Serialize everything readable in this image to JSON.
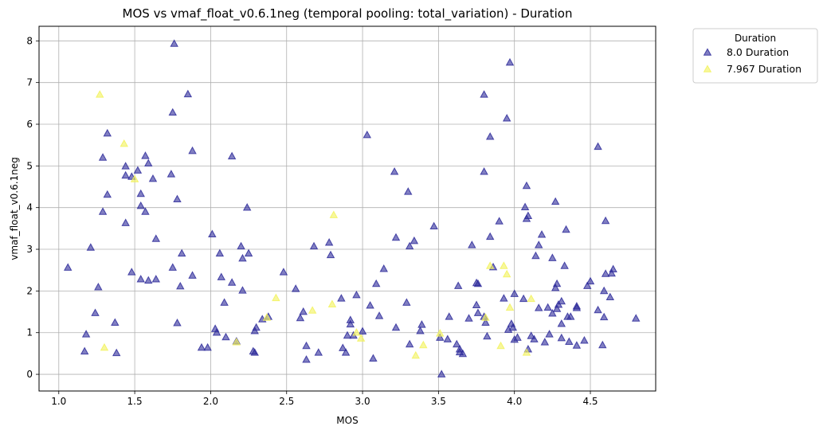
{
  "chart_data": {
    "type": "scatter",
    "title": "MOS vs vmaf_float_v0.6.1neg (temporal pooling: total_variation) - Duration",
    "xlabel": "MOS",
    "ylabel": "vmaf_float_v0.6.1neg",
    "xlim": [
      0.87,
      4.93
    ],
    "ylim": [
      -0.4,
      8.35
    ],
    "xticks": [
      1.0,
      1.5,
      2.0,
      2.5,
      3.0,
      3.5,
      4.0,
      4.5
    ],
    "xtick_labels": [
      "1.0",
      "1.5",
      "2.0",
      "2.5",
      "3.0",
      "3.5",
      "4.0",
      "4.5"
    ],
    "yticks": [
      0,
      1,
      2,
      3,
      4,
      5,
      6,
      7,
      8
    ],
    "ytick_labels": [
      "0",
      "1",
      "2",
      "3",
      "4",
      "5",
      "6",
      "7",
      "8"
    ],
    "grid": true,
    "legend": {
      "title": "Duration",
      "placement": "outside-top-right"
    },
    "marker": "triangle",
    "series": [
      {
        "name": "8.0 Duration",
        "color": "#2d2a9a",
        "points": [
          [
            1.06,
            2.56
          ],
          [
            1.17,
            0.55
          ],
          [
            1.18,
            0.96
          ],
          [
            1.21,
            3.04
          ],
          [
            1.24,
            1.47
          ],
          [
            1.26,
            2.09
          ],
          [
            1.29,
            3.9
          ],
          [
            1.29,
            5.2
          ],
          [
            1.32,
            5.78
          ],
          [
            1.32,
            4.31
          ],
          [
            1.37,
            1.24
          ],
          [
            1.38,
            0.51
          ],
          [
            1.44,
            4.99
          ],
          [
            1.44,
            4.77
          ],
          [
            1.44,
            3.63
          ],
          [
            1.48,
            2.45
          ],
          [
            1.48,
            4.74
          ],
          [
            1.52,
            4.89
          ],
          [
            1.54,
            4.33
          ],
          [
            1.54,
            4.04
          ],
          [
            1.54,
            2.28
          ],
          [
            1.57,
            3.9
          ],
          [
            1.57,
            5.24
          ],
          [
            1.59,
            5.06
          ],
          [
            1.59,
            2.25
          ],
          [
            1.62,
            4.69
          ],
          [
            1.64,
            3.25
          ],
          [
            1.64,
            2.28
          ],
          [
            1.74,
            4.8
          ],
          [
            1.75,
            6.28
          ],
          [
            1.75,
            2.56
          ],
          [
            1.76,
            7.93
          ],
          [
            1.78,
            4.2
          ],
          [
            1.78,
            1.23
          ],
          [
            1.8,
            2.11
          ],
          [
            1.81,
            2.9
          ],
          [
            1.85,
            6.72
          ],
          [
            1.88,
            5.36
          ],
          [
            1.88,
            2.37
          ],
          [
            1.94,
            0.64
          ],
          [
            1.98,
            0.64
          ],
          [
            2.01,
            3.36
          ],
          [
            2.03,
            1.09
          ],
          [
            2.04,
            1.0
          ],
          [
            2.06,
            2.9
          ],
          [
            2.07,
            2.33
          ],
          [
            2.09,
            1.72
          ],
          [
            2.1,
            0.89
          ],
          [
            2.14,
            2.2
          ],
          [
            2.14,
            5.23
          ],
          [
            2.17,
            0.79
          ],
          [
            2.2,
            3.07
          ],
          [
            2.21,
            2.78
          ],
          [
            2.21,
            2.01
          ],
          [
            2.24,
            4.0
          ],
          [
            2.25,
            2.9
          ],
          [
            2.28,
            0.55
          ],
          [
            2.29,
            0.52
          ],
          [
            2.29,
            1.04
          ],
          [
            2.3,
            1.12
          ],
          [
            2.34,
            1.32
          ],
          [
            2.38,
            1.38
          ],
          [
            2.48,
            2.45
          ],
          [
            2.56,
            2.05
          ],
          [
            2.59,
            1.35
          ],
          [
            2.61,
            1.5
          ],
          [
            2.63,
            0.68
          ],
          [
            2.63,
            0.35
          ],
          [
            2.68,
            3.07
          ],
          [
            2.71,
            0.52
          ],
          [
            2.78,
            3.16
          ],
          [
            2.79,
            2.86
          ],
          [
            2.86,
            1.82
          ],
          [
            2.87,
            0.63
          ],
          [
            2.89,
            0.52
          ],
          [
            2.9,
            0.93
          ],
          [
            2.92,
            1.3
          ],
          [
            2.92,
            1.2
          ],
          [
            2.94,
            0.93
          ],
          [
            2.96,
            1.9
          ],
          [
            3.0,
            1.03
          ],
          [
            3.03,
            5.74
          ],
          [
            3.05,
            1.65
          ],
          [
            3.07,
            0.38
          ],
          [
            3.09,
            2.17
          ],
          [
            3.11,
            1.4
          ],
          [
            3.14,
            2.53
          ],
          [
            3.21,
            4.86
          ],
          [
            3.22,
            3.28
          ],
          [
            3.22,
            1.12
          ],
          [
            3.29,
            1.72
          ],
          [
            3.3,
            4.38
          ],
          [
            3.31,
            0.72
          ],
          [
            3.31,
            3.07
          ],
          [
            3.34,
            3.2
          ],
          [
            3.38,
            1.04
          ],
          [
            3.39,
            1.19
          ],
          [
            3.47,
            3.55
          ],
          [
            3.51,
            0.88
          ],
          [
            3.52,
            0.0
          ],
          [
            3.56,
            0.84
          ],
          [
            3.57,
            1.38
          ],
          [
            3.62,
            0.72
          ],
          [
            3.63,
            2.12
          ],
          [
            3.64,
            0.53
          ],
          [
            3.64,
            0.6
          ],
          [
            3.66,
            0.49
          ],
          [
            3.7,
            1.34
          ],
          [
            3.72,
            3.1
          ],
          [
            3.75,
            2.19
          ],
          [
            3.75,
            1.66
          ],
          [
            3.76,
            2.17
          ],
          [
            3.76,
            1.47
          ],
          [
            3.8,
            6.71
          ],
          [
            3.8,
            4.86
          ],
          [
            3.8,
            1.38
          ],
          [
            3.81,
            1.24
          ],
          [
            3.82,
            0.91
          ],
          [
            3.84,
            5.7
          ],
          [
            3.84,
            3.3
          ],
          [
            3.86,
            2.57
          ],
          [
            3.9,
            3.67
          ],
          [
            3.93,
            1.82
          ],
          [
            3.95,
            6.14
          ],
          [
            3.96,
            1.07
          ],
          [
            3.97,
            7.48
          ],
          [
            3.98,
            1.21
          ],
          [
            3.99,
            1.12
          ],
          [
            4.0,
            0.83
          ],
          [
            4.0,
            1.93
          ],
          [
            4.02,
            0.88
          ],
          [
            4.06,
            1.81
          ],
          [
            4.07,
            4.01
          ],
          [
            4.08,
            4.52
          ],
          [
            4.08,
            3.73
          ],
          [
            4.09,
            3.8
          ],
          [
            4.09,
            0.6
          ],
          [
            4.11,
            0.92
          ],
          [
            4.13,
            0.84
          ],
          [
            4.14,
            2.84
          ],
          [
            4.16,
            1.59
          ],
          [
            4.16,
            3.1
          ],
          [
            4.18,
            3.35
          ],
          [
            4.2,
            0.77
          ],
          [
            4.22,
            1.6
          ],
          [
            4.23,
            0.96
          ],
          [
            4.25,
            2.79
          ],
          [
            4.25,
            1.46
          ],
          [
            4.27,
            4.14
          ],
          [
            4.27,
            2.07
          ],
          [
            4.28,
            1.57
          ],
          [
            4.28,
            2.17
          ],
          [
            4.29,
            1.67
          ],
          [
            4.31,
            0.87
          ],
          [
            4.31,
            1.75
          ],
          [
            4.31,
            1.21
          ],
          [
            4.33,
            2.6
          ],
          [
            4.34,
            3.47
          ],
          [
            4.35,
            1.38
          ],
          [
            4.36,
            0.78
          ],
          [
            4.37,
            1.38
          ],
          [
            4.41,
            0.69
          ],
          [
            4.41,
            1.63
          ],
          [
            4.41,
            1.59
          ],
          [
            4.46,
            0.81
          ],
          [
            4.48,
            2.12
          ],
          [
            4.5,
            2.23
          ],
          [
            4.55,
            5.46
          ],
          [
            4.55,
            1.54
          ],
          [
            4.58,
            0.7
          ],
          [
            4.59,
            2.0
          ],
          [
            4.59,
            1.37
          ],
          [
            4.6,
            3.68
          ],
          [
            4.6,
            2.41
          ],
          [
            4.63,
            1.85
          ],
          [
            4.64,
            2.42
          ],
          [
            4.65,
            2.52
          ],
          [
            4.8,
            1.34
          ]
        ]
      },
      {
        "name": "7.967 Duration",
        "color": "#f2f25a",
        "points": [
          [
            1.27,
            6.71
          ],
          [
            1.3,
            0.64
          ],
          [
            1.43,
            5.53
          ],
          [
            1.5,
            4.68
          ],
          [
            2.17,
            0.77
          ],
          [
            2.37,
            1.36
          ],
          [
            2.43,
            1.83
          ],
          [
            2.67,
            1.53
          ],
          [
            2.8,
            1.68
          ],
          [
            2.81,
            3.82
          ],
          [
            2.96,
            1.0
          ],
          [
            2.99,
            0.86
          ],
          [
            3.35,
            0.45
          ],
          [
            3.4,
            0.7
          ],
          [
            3.51,
            0.98
          ],
          [
            3.81,
            1.36
          ],
          [
            3.84,
            2.6
          ],
          [
            3.91,
            0.68
          ],
          [
            3.93,
            2.6
          ],
          [
            3.95,
            2.4
          ],
          [
            3.97,
            1.6
          ],
          [
            4.08,
            0.52
          ],
          [
            4.11,
            1.81
          ]
        ]
      }
    ]
  }
}
